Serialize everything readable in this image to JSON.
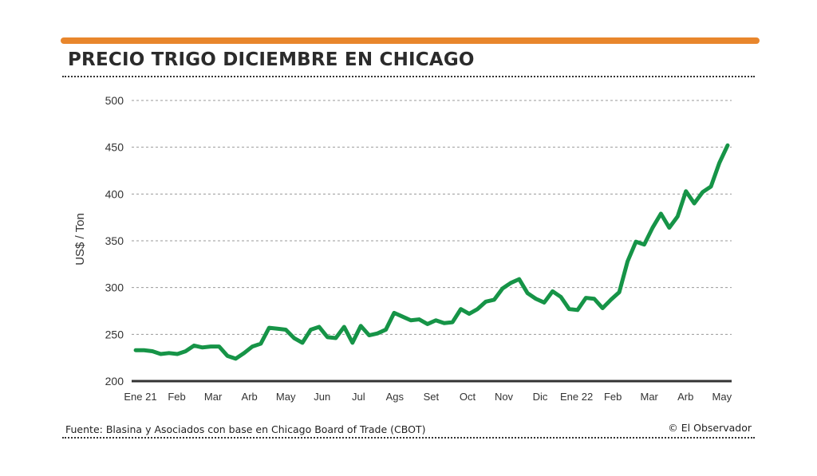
{
  "chart_data": {
    "type": "line",
    "title": "PRECIO TRIGO DICIEMBRE EN CHICAGO",
    "ylabel": "US$ / Ton",
    "xlabel": "",
    "ylim": [
      200,
      500
    ],
    "yticks": [
      200,
      250,
      300,
      350,
      400,
      450,
      500
    ],
    "xticks": [
      "Ene 21",
      "Feb",
      "Mar",
      "Arb",
      "May",
      "Jun",
      "Jul",
      "Ags",
      "Set",
      "Oct",
      "Nov",
      "Dic",
      "Ene 22",
      "Feb",
      "Mar",
      "Arb",
      "May"
    ],
    "x_start_month": -0.13,
    "x_step_month": 0.2294,
    "grid": true,
    "color": "#169447",
    "series": [
      {
        "name": "Precio trigo diciembre",
        "values": [
          233,
          233,
          232,
          229,
          230,
          229,
          232,
          238,
          236,
          237,
          237,
          227,
          224,
          230,
          237,
          240,
          257,
          256,
          255,
          246,
          241,
          255,
          258,
          247,
          246,
          258,
          241,
          259,
          249,
          251,
          255,
          273,
          269,
          265,
          266,
          261,
          265,
          262,
          263,
          277,
          272,
          277,
          285,
          287,
          299,
          305,
          309,
          294,
          288,
          284,
          296,
          290,
          277,
          276,
          289,
          288,
          278,
          287,
          295,
          328,
          349,
          346,
          364,
          379,
          364,
          376,
          403,
          390,
          402,
          408,
          433,
          452
        ]
      }
    ]
  },
  "footer": {
    "source": "Fuente: Blasina y Asociados con base en Chicago Board of Trade (CBOT)",
    "credit": "© El Observador"
  },
  "colors": {
    "accent": "#e8862c",
    "line": "#169447"
  }
}
